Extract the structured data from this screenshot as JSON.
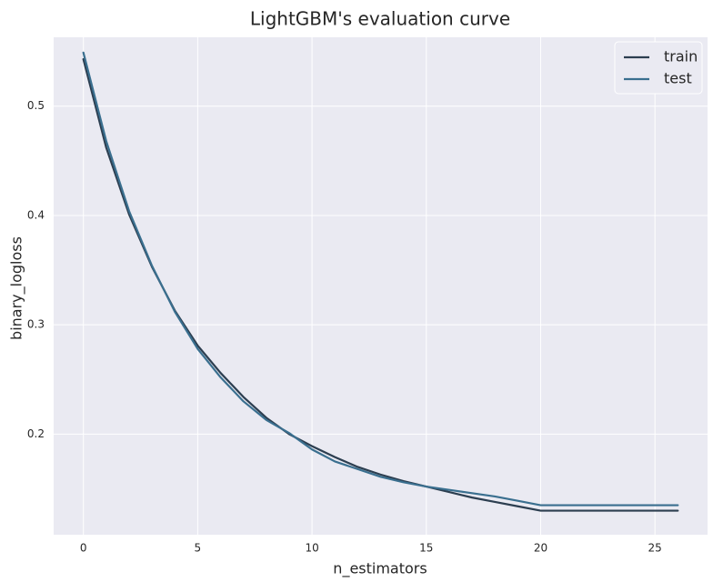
{
  "chart_data": {
    "type": "line",
    "title": "LightGBM's evaluation curve",
    "xlabel": "n_estimators",
    "ylabel": "binary_logloss",
    "xlim": [
      -1.3,
      27.3
    ],
    "ylim": [
      0.108,
      0.563
    ],
    "xticks": [
      0,
      5,
      10,
      15,
      20,
      25
    ],
    "yticks": [
      0.2,
      0.3,
      0.4,
      0.5
    ],
    "ytick_labels": [
      "0.2",
      "0.3",
      "0.4",
      "0.5"
    ],
    "grid": true,
    "legend_position": "top-right",
    "x": [
      0,
      1,
      2,
      3,
      4,
      5,
      6,
      7,
      8,
      9,
      10,
      11,
      12,
      13,
      14,
      15,
      16,
      17,
      18,
      19,
      20,
      21,
      22,
      23,
      24,
      25,
      26
    ],
    "series": [
      {
        "name": "train",
        "color": "#2c3e50",
        "values": [
          0.543,
          0.462,
          0.401,
          0.353,
          0.313,
          0.281,
          0.256,
          0.234,
          0.215,
          0.2,
          0.189,
          0.179,
          0.17,
          0.163,
          0.157,
          0.152,
          0.147,
          0.142,
          0.138,
          0.134,
          0.13,
          0.13,
          0.13,
          0.13,
          0.13,
          0.13,
          0.13
        ]
      },
      {
        "name": "test",
        "color": "#3a6f8f",
        "values": [
          0.549,
          0.468,
          0.404,
          0.354,
          0.312,
          0.278,
          0.252,
          0.23,
          0.213,
          0.201,
          0.186,
          0.175,
          0.168,
          0.161,
          0.156,
          0.152,
          0.149,
          0.146,
          0.143,
          0.139,
          0.135,
          0.135,
          0.135,
          0.135,
          0.135,
          0.135,
          0.135
        ]
      }
    ],
    "background": "#eaeaf2",
    "grid_color": "#ffffff"
  }
}
